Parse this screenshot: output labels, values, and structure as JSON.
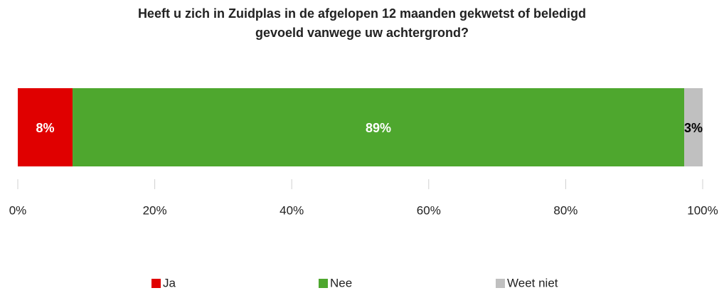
{
  "chart_data": {
    "type": "stacked_bar_horizontal",
    "title": [
      "Heeft u zich in Zuidplas in de afgelopen 12 maanden gekwetst of beledigd",
      "gevoeld vanwege uw achtergrond?"
    ],
    "categories": [
      null
    ],
    "series": [
      {
        "name": "Ja",
        "color": "#e00000",
        "values": [
          8
        ],
        "value_labels": [
          "8%"
        ]
      },
      {
        "name": "Nee",
        "color": "#4ea72e",
        "values": [
          89.3
        ],
        "value_labels": [
          "89%"
        ]
      },
      {
        "name": "Weet niet",
        "color": "#c0c0c0",
        "values": [
          2.7
        ],
        "value_labels": [
          "3%"
        ]
      }
    ],
    "xlim": [
      0,
      100
    ],
    "xticks": [
      {
        "value": 0,
        "label": "0%"
      },
      {
        "value": 20,
        "label": "20%"
      },
      {
        "value": 40,
        "label": "40%"
      },
      {
        "value": 60,
        "label": "60%"
      },
      {
        "value": 80,
        "label": "80%"
      },
      {
        "value": 100,
        "label": "100%"
      }
    ],
    "legend": "bottom"
  }
}
